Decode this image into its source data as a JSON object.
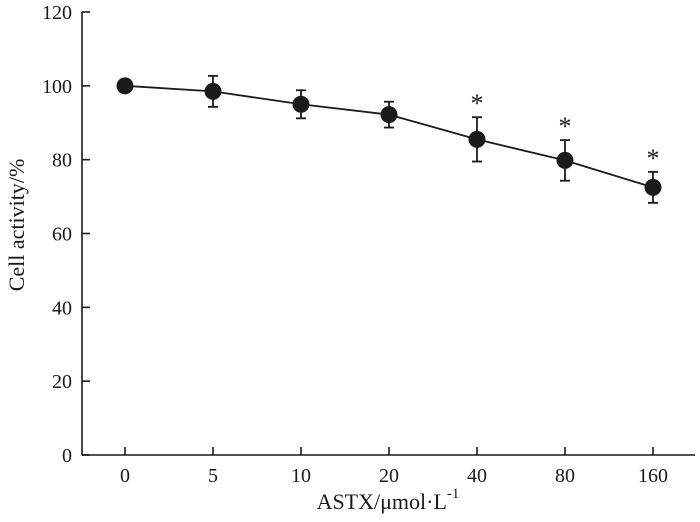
{
  "chart_data": {
    "type": "line",
    "categories": [
      "0",
      "5",
      "10",
      "20",
      "40",
      "80",
      "160"
    ],
    "series": [
      {
        "values": [
          100,
          98.5,
          95,
          92.2,
          85.5,
          79.8,
          72.5
        ],
        "error": [
          0,
          4.2,
          3.8,
          3.5,
          6.0,
          5.5,
          4.2
        ],
        "significance": [
          "",
          "",
          "",
          "",
          "*",
          "*",
          "*"
        ]
      }
    ],
    "xlabel": "ASTX/μmol·L",
    "xlabel_superscript": "-1",
    "ylabel": "Cell activity/%",
    "ylim": [
      0,
      120
    ],
    "yticks": [
      "0",
      "20",
      "40",
      "60",
      "80",
      "100",
      "120"
    ],
    "grid": false,
    "colors": {
      "line": "#1a1a1a",
      "marker": "#1a1a1a",
      "axis": "#1a1a1a"
    }
  }
}
